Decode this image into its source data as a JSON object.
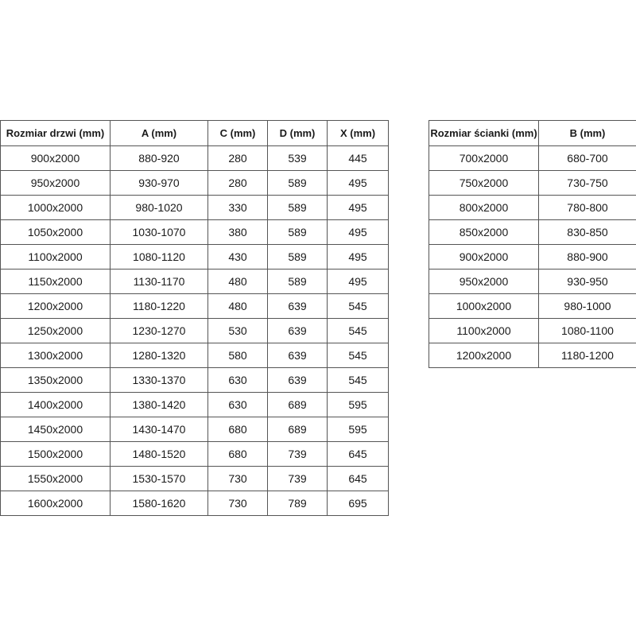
{
  "door_table": {
    "headers": [
      "Rozmiar drzwi (mm)",
      "A (mm)",
      "C (mm)",
      "D (mm)",
      "X (mm)"
    ],
    "rows": [
      [
        "900x2000",
        "880-920",
        "280",
        "539",
        "445"
      ],
      [
        "950x2000",
        "930-970",
        "280",
        "589",
        "495"
      ],
      [
        "1000x2000",
        "980-1020",
        "330",
        "589",
        "495"
      ],
      [
        "1050x2000",
        "1030-1070",
        "380",
        "589",
        "495"
      ],
      [
        "1100x2000",
        "1080-1120",
        "430",
        "589",
        "495"
      ],
      [
        "1150x2000",
        "1130-1170",
        "480",
        "589",
        "495"
      ],
      [
        "1200x2000",
        "1180-1220",
        "480",
        "639",
        "545"
      ],
      [
        "1250x2000",
        "1230-1270",
        "530",
        "639",
        "545"
      ],
      [
        "1300x2000",
        "1280-1320",
        "580",
        "639",
        "545"
      ],
      [
        "1350x2000",
        "1330-1370",
        "630",
        "639",
        "545"
      ],
      [
        "1400x2000",
        "1380-1420",
        "630",
        "689",
        "595"
      ],
      [
        "1450x2000",
        "1430-1470",
        "680",
        "689",
        "595"
      ],
      [
        "1500x2000",
        "1480-1520",
        "680",
        "739",
        "645"
      ],
      [
        "1550x2000",
        "1530-1570",
        "730",
        "739",
        "645"
      ],
      [
        "1600x2000",
        "1580-1620",
        "730",
        "789",
        "695"
      ]
    ]
  },
  "wall_table": {
    "headers": [
      "Rozmiar ścianki (mm)",
      "B (mm)"
    ],
    "rows": [
      [
        "700x2000",
        "680-700"
      ],
      [
        "750x2000",
        "730-750"
      ],
      [
        "800x2000",
        "780-800"
      ],
      [
        "850x2000",
        "830-850"
      ],
      [
        "900x2000",
        "880-900"
      ],
      [
        "950x2000",
        "930-950"
      ],
      [
        "1000x2000",
        "980-1000"
      ],
      [
        "1100x2000",
        "1080-1100"
      ],
      [
        "1200x2000",
        "1180-1200"
      ]
    ]
  }
}
